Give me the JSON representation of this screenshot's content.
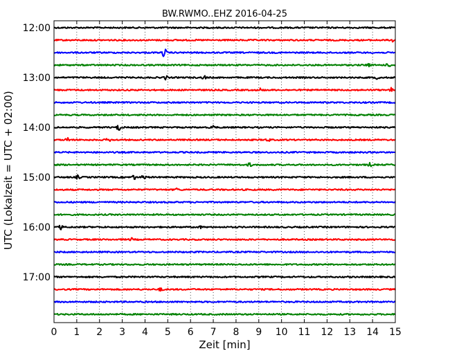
{
  "chart_data": {
    "type": "line",
    "title": "BW.RWMO..EHZ 2016-04-25",
    "xlabel": "Zeit  [min]",
    "ylabel": "UTC (Lokalzeit = UTC + 02:00)",
    "xlim": [
      0,
      15
    ],
    "x_ticks": [
      "0",
      "1",
      "2",
      "3",
      "4",
      "5",
      "6",
      "7",
      "8",
      "9",
      "10",
      "11",
      "12",
      "13",
      "14",
      "15"
    ],
    "y_hour_labels": [
      "12:00",
      "13:00",
      "14:00",
      "15:00",
      "16:00",
      "17:00"
    ],
    "grid": true,
    "trace_interval_minutes": 15,
    "start_time": "12:00",
    "colors": [
      "#000000",
      "#ff0000",
      "#0000ff",
      "#008000"
    ],
    "traces": [
      {
        "start": "12:00",
        "color": "#000000",
        "events": []
      },
      {
        "start": "12:15",
        "color": "#ff0000",
        "events": [
          {
            "t": 14.95,
            "amp": 6
          }
        ]
      },
      {
        "start": "12:30",
        "color": "#0000ff",
        "events": [
          {
            "t": 4.85,
            "amp": 8
          }
        ]
      },
      {
        "start": "12:45",
        "color": "#008000",
        "events": [
          {
            "t": 13.8,
            "amp": 3
          },
          {
            "t": 14.7,
            "amp": 3
          }
        ]
      },
      {
        "start": "13:00",
        "color": "#000000",
        "events": [
          {
            "t": 4.9,
            "amp": 3
          },
          {
            "t": 6.6,
            "amp": 3
          },
          {
            "t": 14.2,
            "amp": 2
          }
        ]
      },
      {
        "start": "13:15",
        "color": "#ff0000",
        "events": [
          {
            "t": 9.1,
            "amp": 3
          },
          {
            "t": 14.8,
            "amp": 3
          }
        ]
      },
      {
        "start": "13:30",
        "color": "#0000ff",
        "events": []
      },
      {
        "start": "13:45",
        "color": "#008000",
        "events": []
      },
      {
        "start": "14:00",
        "color": "#000000",
        "events": [
          {
            "t": 2.85,
            "amp": 5
          },
          {
            "t": 7.0,
            "amp": 3
          }
        ]
      },
      {
        "start": "14:15",
        "color": "#ff0000",
        "events": [
          {
            "t": 0.6,
            "amp": 3
          },
          {
            "t": 2.4,
            "amp": 3
          },
          {
            "t": 9.4,
            "amp": 3
          }
        ]
      },
      {
        "start": "14:30",
        "color": "#0000ff",
        "events": []
      },
      {
        "start": "14:45",
        "color": "#008000",
        "events": [
          {
            "t": 8.6,
            "amp": 3
          },
          {
            "t": 13.9,
            "amp": 3
          }
        ]
      },
      {
        "start": "15:00",
        "color": "#000000",
        "events": [
          {
            "t": 1.05,
            "amp": 3
          },
          {
            "t": 3.5,
            "amp": 4
          },
          {
            "t": 3.95,
            "amp": 4
          }
        ]
      },
      {
        "start": "15:15",
        "color": "#ff0000",
        "events": [
          {
            "t": 5.4,
            "amp": 2
          }
        ]
      },
      {
        "start": "15:30",
        "color": "#0000ff",
        "events": []
      },
      {
        "start": "15:45",
        "color": "#008000",
        "events": []
      },
      {
        "start": "16:00",
        "color": "#000000",
        "events": [
          {
            "t": 0.3,
            "amp": 3
          },
          {
            "t": 6.4,
            "amp": 2
          }
        ]
      },
      {
        "start": "16:15",
        "color": "#ff0000",
        "events": [
          {
            "t": 3.4,
            "amp": 2
          }
        ]
      },
      {
        "start": "16:30",
        "color": "#0000ff",
        "events": []
      },
      {
        "start": "16:45",
        "color": "#008000",
        "events": []
      },
      {
        "start": "17:00",
        "color": "#000000",
        "events": []
      },
      {
        "start": "17:15",
        "color": "#ff0000",
        "events": [
          {
            "t": 4.7,
            "amp": 3
          }
        ]
      },
      {
        "start": "17:30",
        "color": "#0000ff",
        "events": []
      },
      {
        "start": "17:45",
        "color": "#008000",
        "events": []
      }
    ]
  }
}
